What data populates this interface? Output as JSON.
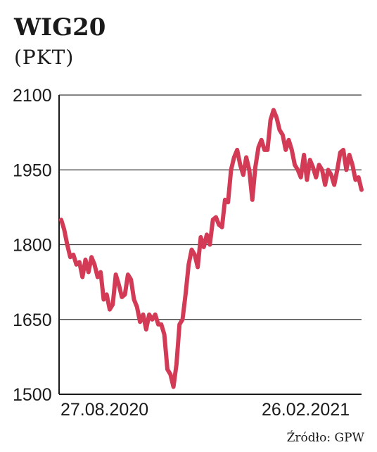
{
  "chart_data": {
    "type": "line",
    "title": "WIG20",
    "subtitle": "(PKT)",
    "xlabel": "",
    "ylabel": "",
    "ylim": [
      1500,
      2100
    ],
    "y_ticks": [
      1500,
      1650,
      1800,
      1950,
      2100
    ],
    "x_tick_labels": [
      "27.08.2020",
      "26.02.2021"
    ],
    "grid": "horizontal",
    "line_color": "#d23a55",
    "series": [
      {
        "values": [
          1850,
          1830,
          1800,
          1775,
          1780,
          1760,
          1765,
          1735,
          1770,
          1745,
          1775,
          1760,
          1735,
          1745,
          1690,
          1700,
          1670,
          1680,
          1740,
          1720,
          1695,
          1700,
          1740,
          1730,
          1690,
          1675,
          1645,
          1660,
          1630,
          1660,
          1650,
          1660,
          1640,
          1640,
          1620,
          1550,
          1540,
          1515,
          1560,
          1640,
          1650,
          1700,
          1760,
          1790,
          1780,
          1755,
          1815,
          1795,
          1820,
          1800,
          1850,
          1855,
          1840,
          1835,
          1890,
          1885,
          1950,
          1975,
          1990,
          1960,
          1940,
          1975,
          1950,
          1890,
          1955,
          1995,
          2010,
          1990,
          1990,
          2050,
          2070,
          2055,
          2030,
          2020,
          1990,
          2010,
          1990,
          1960,
          1950,
          1935,
          1980,
          1930,
          1970,
          1955,
          1935,
          1960,
          1950,
          1920,
          1950,
          1940,
          1920,
          1950,
          1985,
          1990,
          1950,
          1980,
          1960,
          1930,
          1935,
          1910
        ]
      }
    ]
  },
  "source": "Źródło: GPW"
}
